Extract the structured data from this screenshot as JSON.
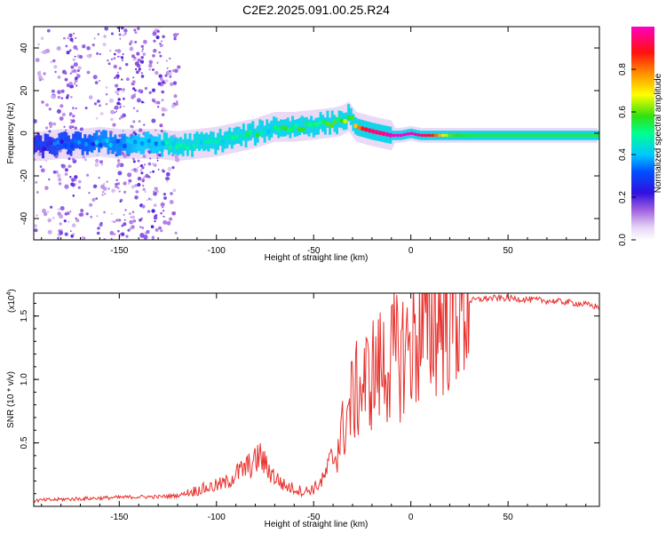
{
  "page_title": "C2E2.2025.091.00.25.R24",
  "chart_data": [
    {
      "type": "heatmap",
      "title": "C2E2.2025.091.00.25.R24",
      "xlabel": "Height of straight line (km)",
      "ylabel": "Frequency (Hz)",
      "xlim": [
        -194,
        97
      ],
      "ylim": [
        -50,
        50
      ],
      "x_ticks": [
        -150,
        -100,
        -50,
        0,
        50
      ],
      "x_tick_labels": [
        "-150",
        "-100",
        "-50",
        "0",
        "50"
      ],
      "y_ticks": [
        -40,
        -20,
        0,
        20,
        40
      ],
      "y_tick_labels": [
        "-40",
        "-20",
        "0",
        "20",
        "40"
      ],
      "colorbar": {
        "label": "Normalized spectral amplitude",
        "range": [
          0,
          1
        ],
        "ticks": [
          0.0,
          0.2,
          0.4,
          0.6,
          0.8
        ],
        "tick_labels": [
          "0.0",
          "0.2",
          "0.4",
          "0.6",
          "0.8"
        ],
        "colormap": [
          "#ffffff",
          "#d9b8f0",
          "#8a3cd8",
          "#1010e0",
          "#00c8ff",
          "#00ff80",
          "#40e010",
          "#ffff00",
          "#ff8000",
          "#ff0000",
          "#ff00c0"
        ]
      },
      "ridge": {
        "x": [
          -190,
          -180,
          -170,
          -160,
          -150,
          -140,
          -130,
          -120,
          -110,
          -100,
          -90,
          -80,
          -70,
          -60,
          -50,
          -40,
          -35,
          -32,
          -28,
          -24,
          -20,
          -15,
          -10,
          -5,
          0,
          5,
          10,
          20,
          30,
          40,
          50,
          60,
          70,
          80,
          90,
          95
        ],
        "y": [
          -6,
          -5,
          -5,
          -4,
          -5,
          -5,
          -5,
          -6,
          -5,
          -4,
          -2,
          0,
          3,
          3,
          4,
          5,
          6,
          8,
          3,
          2,
          1,
          0,
          -1,
          -1,
          0,
          -1,
          -1,
          -1,
          -1,
          -1,
          -1,
          -1,
          -1,
          -1,
          -1,
          -1
        ],
        "amplitude": [
          0.25,
          0.3,
          0.3,
          0.35,
          0.35,
          0.4,
          0.4,
          0.45,
          0.45,
          0.45,
          0.5,
          0.5,
          0.45,
          0.55,
          0.55,
          0.6,
          0.6,
          0.55,
          0.75,
          0.9,
          0.95,
          0.95,
          1.0,
          1.0,
          1.0,
          0.95,
          0.9,
          0.6,
          0.55,
          0.55,
          0.55,
          0.55,
          0.55,
          0.55,
          0.55,
          0.55
        ]
      }
    },
    {
      "type": "line",
      "xlabel": "Height of straight line (km)",
      "ylabel": "SNR (10 * v/v)",
      "y_scale_label": "(x10",
      "y_scale_exp": "4",
      "y_scale_close": ")",
      "xlim": [
        -194,
        97
      ],
      "ylim": [
        0,
        1.68
      ],
      "x_ticks": [
        -150,
        -100,
        -50,
        0,
        50
      ],
      "x_tick_labels": [
        "-150",
        "-100",
        "-50",
        "0",
        "50"
      ],
      "y_ticks": [
        0.5,
        1.0,
        1.5
      ],
      "y_tick_labels": [
        "0.5",
        "1.0",
        "1.5"
      ],
      "color": "#e8302c",
      "x": [
        -194,
        -180,
        -160,
        -140,
        -130,
        -120,
        -115,
        -110,
        -100,
        -95,
        -90,
        -85,
        -80,
        -78,
        -75,
        -70,
        -65,
        -60,
        -55,
        -50,
        -45,
        -40,
        -35,
        -30,
        -28,
        -25,
        -22,
        -20,
        -15,
        -10,
        -5,
        0,
        5,
        10,
        15,
        20,
        25,
        30,
        35,
        40,
        50,
        60,
        70,
        80,
        90,
        97
      ],
      "y": [
        0.03,
        0.04,
        0.05,
        0.06,
        0.06,
        0.07,
        0.09,
        0.11,
        0.14,
        0.16,
        0.22,
        0.26,
        0.3,
        0.35,
        0.28,
        0.2,
        0.14,
        0.12,
        0.1,
        0.12,
        0.18,
        0.35,
        0.6,
        0.85,
        0.9,
        0.95,
        1.0,
        1.05,
        1.1,
        1.15,
        1.2,
        1.28,
        1.35,
        1.42,
        1.5,
        1.55,
        1.6,
        1.62,
        1.63,
        1.64,
        1.64,
        1.63,
        1.62,
        1.61,
        1.59,
        1.57
      ]
    }
  ]
}
